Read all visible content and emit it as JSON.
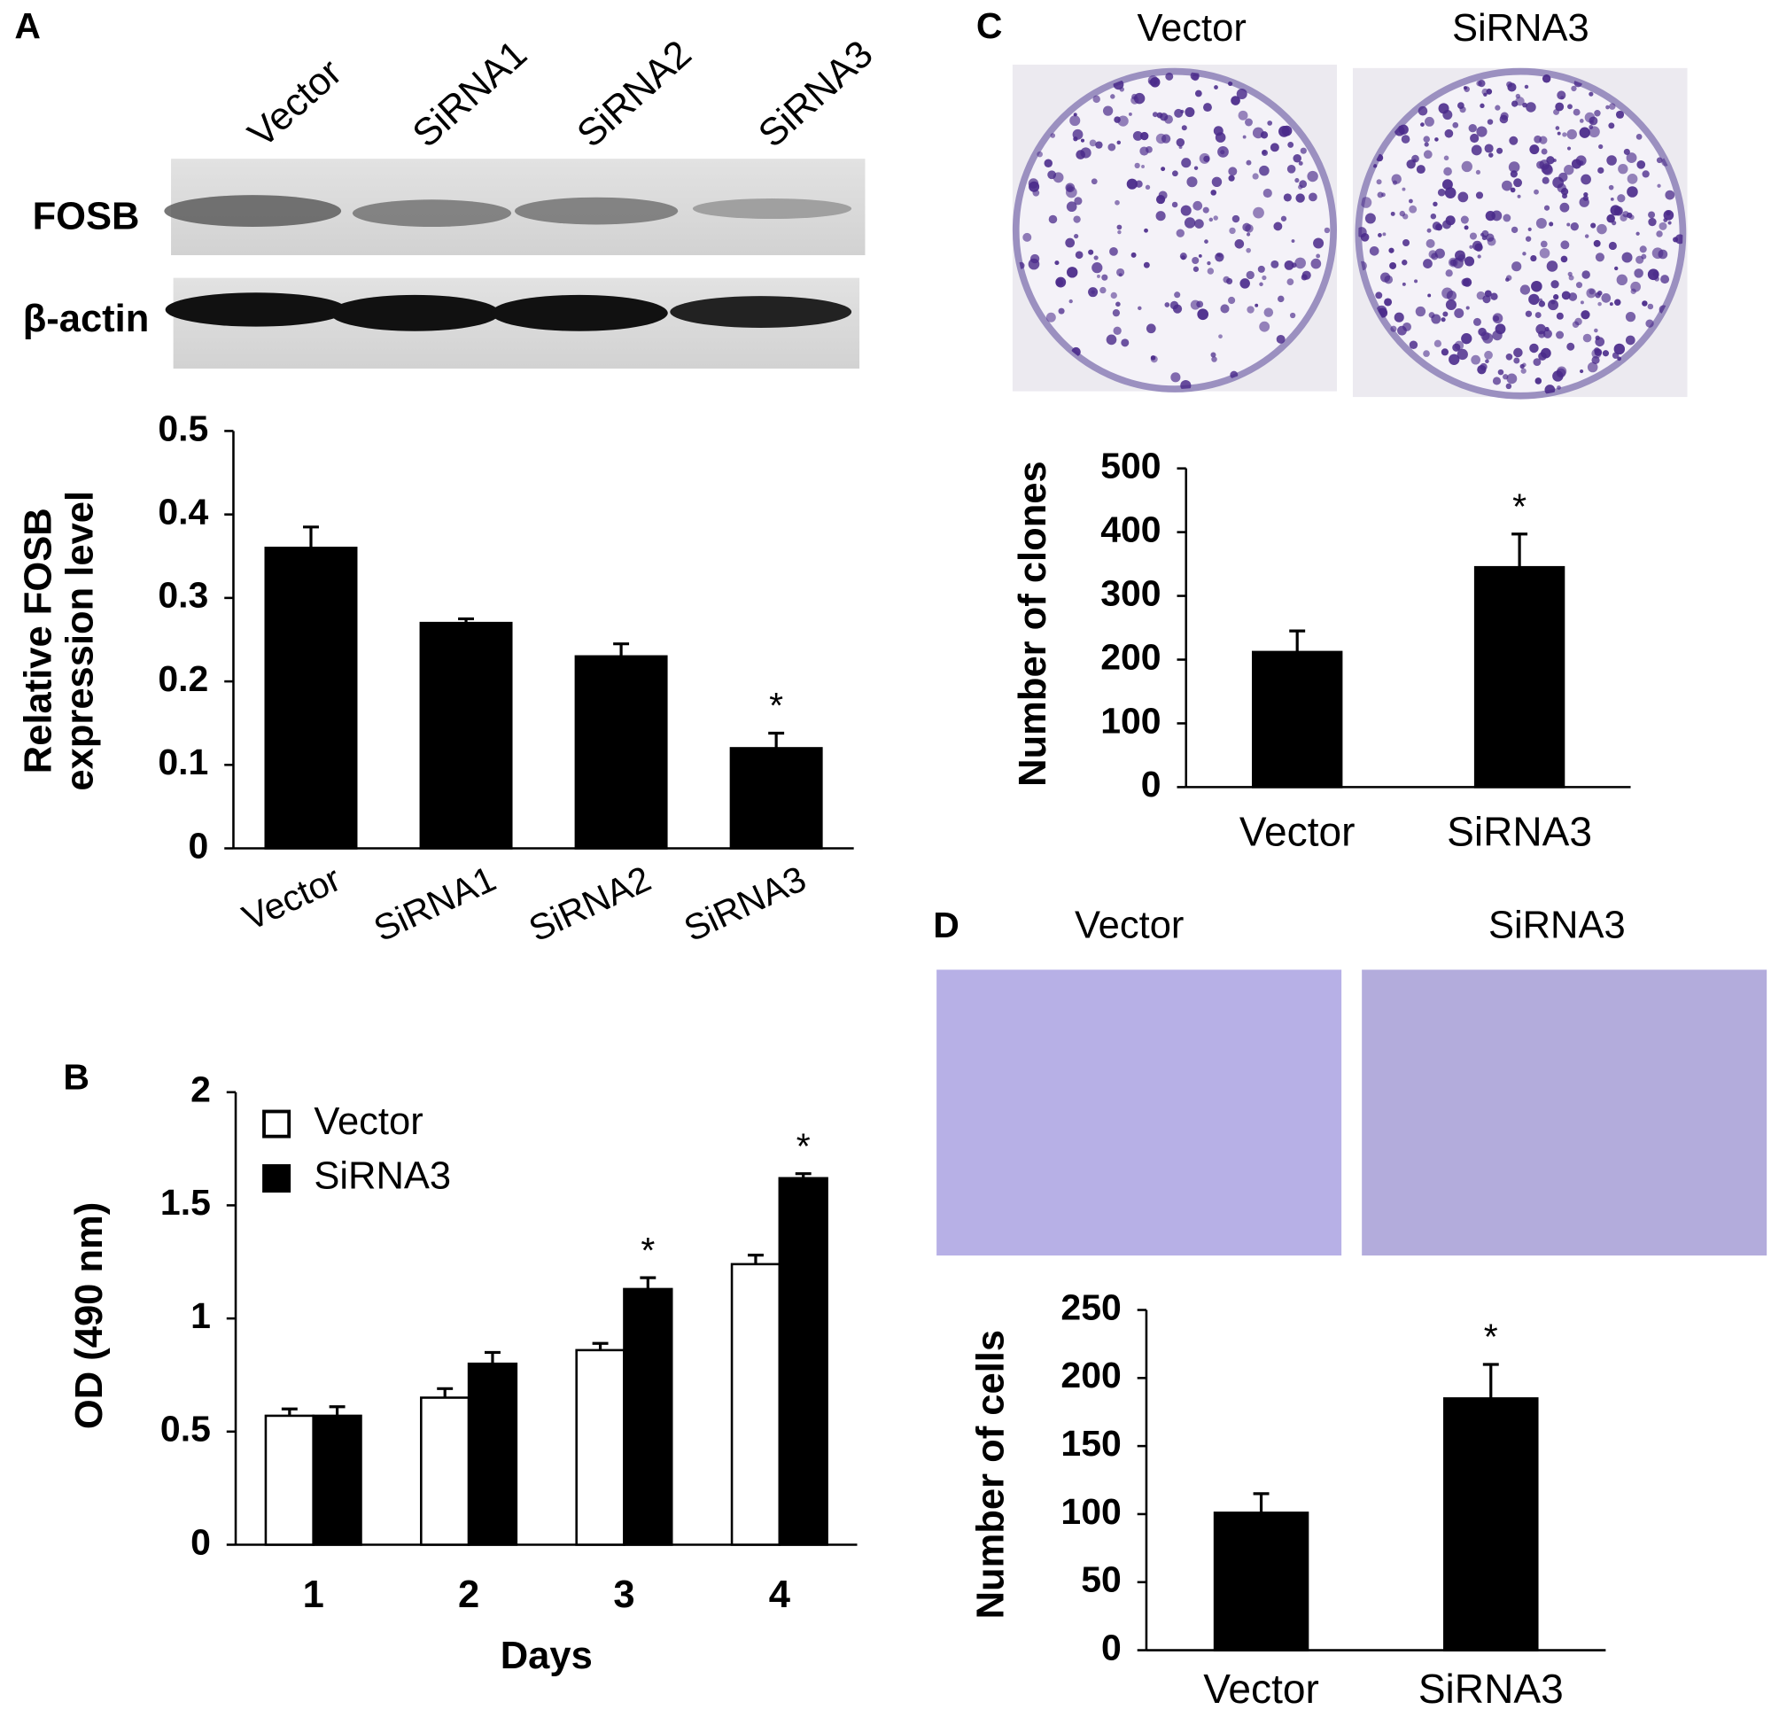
{
  "panel_labels": [
    "A",
    "B",
    "C",
    "D"
  ],
  "blot": {
    "lanes": [
      "Vector",
      "SiRNA1",
      "SiRNA2",
      "SiRNA3"
    ],
    "rows": [
      "FOSB",
      "β-actin"
    ]
  },
  "colony_photos": {
    "labels": [
      "Vector",
      "SiRNA3"
    ]
  },
  "migration_photos": {
    "labels": [
      "Vector",
      "SiRNA3"
    ]
  },
  "chart_data": [
    {
      "type": "bar",
      "ylabel": [
        "Relative FOSB",
        "expression level"
      ],
      "categories": [
        "Vector",
        "SiRNA1",
        "SiRNA2",
        "SiRNA3"
      ],
      "values": [
        0.36,
        0.27,
        0.23,
        0.12
      ],
      "errors": [
        0.025,
        0.005,
        0.015,
        0.018
      ],
      "significance": [
        null,
        null,
        null,
        "*"
      ],
      "color": "#000000",
      "ylim": [
        0,
        0.5
      ],
      "yticks": [
        0,
        0.1,
        0.2,
        0.3,
        0.4,
        0.5
      ],
      "grid": false
    },
    {
      "type": "bar",
      "xlabel": "Days",
      "ylabel": "OD (490 nm)",
      "categories": [
        "1",
        "2",
        "3",
        "4"
      ],
      "series": [
        {
          "name": "Vector",
          "color": "#ffffff",
          "values": [
            0.57,
            0.65,
            0.86,
            1.24
          ],
          "errors": [
            0.03,
            0.04,
            0.03,
            0.04
          ],
          "significance": [
            null,
            null,
            null,
            null
          ]
        },
        {
          "name": "SiRNA3",
          "color": "#000000",
          "values": [
            0.57,
            0.8,
            1.13,
            1.62
          ],
          "errors": [
            0.04,
            0.05,
            0.05,
            0.02
          ],
          "significance": [
            null,
            null,
            "*",
            "*"
          ]
        }
      ],
      "ylim": [
        0,
        2
      ],
      "yticks": [
        0,
        0.5,
        1,
        1.5,
        2
      ],
      "legend": "upper-left",
      "grid": false
    },
    {
      "type": "bar",
      "ylabel": "Number of clones",
      "categories": [
        "Vector",
        "SiRNA3"
      ],
      "values": [
        212,
        345
      ],
      "errors": [
        33,
        52
      ],
      "significance": [
        null,
        "*"
      ],
      "color": "#000000",
      "ylim": [
        0,
        500
      ],
      "yticks": [
        0,
        100,
        200,
        300,
        400,
        500
      ],
      "grid": false
    },
    {
      "type": "bar",
      "ylabel": "Number of cells",
      "categories": [
        "Vector",
        "SiRNA3"
      ],
      "values": [
        101,
        185
      ],
      "errors": [
        14,
        25
      ],
      "significance": [
        null,
        "*"
      ],
      "color": "#000000",
      "ylim": [
        0,
        250
      ],
      "yticks": [
        0,
        50,
        100,
        150,
        200,
        250
      ],
      "grid": false
    }
  ]
}
